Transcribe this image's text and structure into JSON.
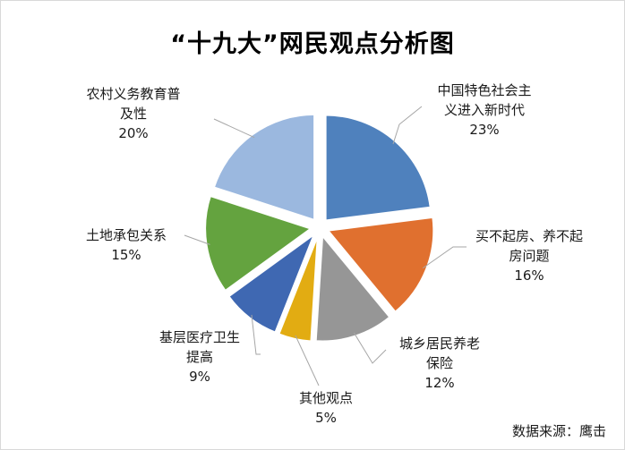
{
  "chart_data": {
    "type": "pie",
    "title": "“十九大”网民观点分析图",
    "slices": [
      {
        "label": "中国特色社会主义进入新时代",
        "label_lines": [
          "中国特色社会主",
          "义进入新时代"
        ],
        "value": 23,
        "value_label": "23%",
        "color": "#4F81BD"
      },
      {
        "label": "买不起房、养不起房问题",
        "label_lines": [
          "买不起房、养不起",
          "房问题"
        ],
        "value": 16,
        "value_label": "16%",
        "color": "#E0702F"
      },
      {
        "label": "城乡居民养老保险",
        "label_lines": [
          "城乡居民养老",
          "保险"
        ],
        "value": 12,
        "value_label": "12%",
        "color": "#969696"
      },
      {
        "label": "其他观点",
        "label_lines": [
          "其他观点"
        ],
        "value": 5,
        "value_label": "5%",
        "color": "#E2AC12"
      },
      {
        "label": "基层医疗卫生提高",
        "label_lines": [
          "基层医疗卫生",
          "提高"
        ],
        "value": 9,
        "value_label": "9%",
        "color": "#3F68B2"
      },
      {
        "label": "土地承包关系",
        "label_lines": [
          "土地承包关系"
        ],
        "value": 15,
        "value_label": "15%",
        "color": "#64A33F"
      },
      {
        "label": "农村义务教育普及性",
        "label_lines": [
          "农村义务教育普",
          "及性"
        ],
        "value": 20,
        "value_label": "20%",
        "color": "#9BB8DF"
      }
    ],
    "legend": "none",
    "exploded": true
  },
  "source_note": "数据来源：鹰击"
}
